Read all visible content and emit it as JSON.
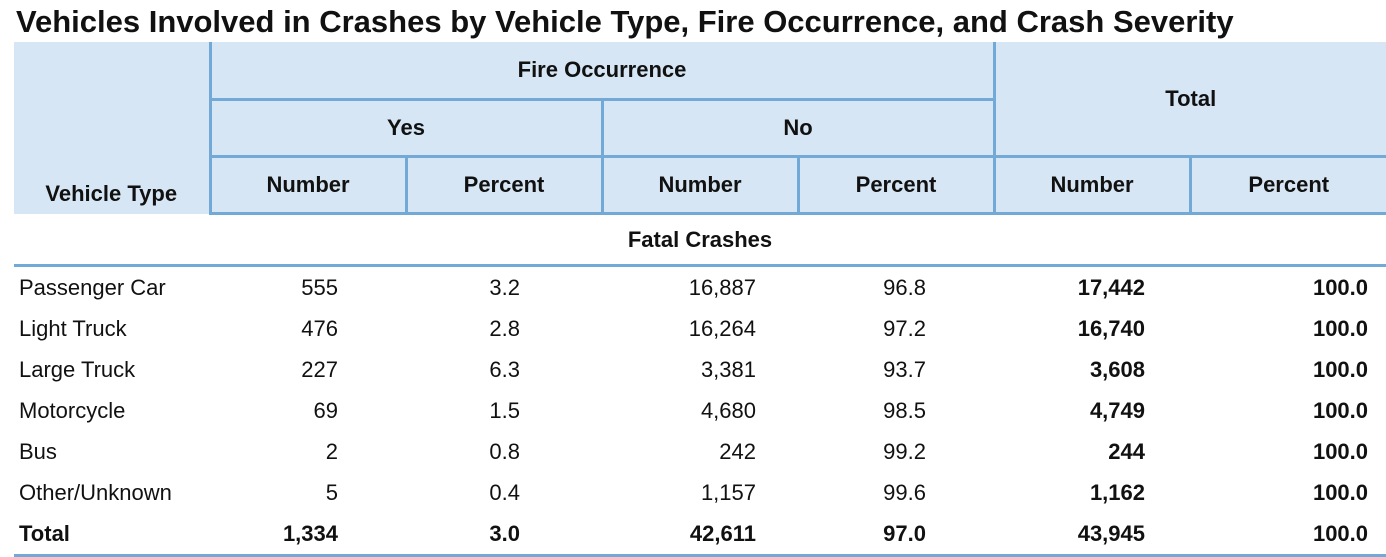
{
  "title": "Vehicles Involved in Crashes by Vehicle Type, Fire Occurrence, and Crash Severity",
  "header": {
    "vehicle_type": "Vehicle Type",
    "fire_occurrence": "Fire Occurrence",
    "yes": "Yes",
    "no": "No",
    "total": "Total",
    "number": "Number",
    "percent": "Percent"
  },
  "section": "Fatal Crashes",
  "rows": [
    {
      "type": "Passenger Car",
      "yes_number": "555",
      "yes_percent": "3.2",
      "no_number": "16,887",
      "no_percent": "96.8",
      "total_number": "17,442",
      "total_percent": "100.0"
    },
    {
      "type": "Light Truck",
      "yes_number": "476",
      "yes_percent": "2.8",
      "no_number": "16,264",
      "no_percent": "97.2",
      "total_number": "16,740",
      "total_percent": "100.0"
    },
    {
      "type": "Large Truck",
      "yes_number": "227",
      "yes_percent": "6.3",
      "no_number": "3,381",
      "no_percent": "93.7",
      "total_number": "3,608",
      "total_percent": "100.0"
    },
    {
      "type": "Motorcycle",
      "yes_number": "69",
      "yes_percent": "1.5",
      "no_number": "4,680",
      "no_percent": "98.5",
      "total_number": "4,749",
      "total_percent": "100.0"
    },
    {
      "type": "Bus",
      "yes_number": "2",
      "yes_percent": "0.8",
      "no_number": "242",
      "no_percent": "99.2",
      "total_number": "244",
      "total_percent": "100.0"
    },
    {
      "type": "Other/Unknown",
      "yes_number": "5",
      "yes_percent": "0.4",
      "no_number": "1,157",
      "no_percent": "99.6",
      "total_number": "1,162",
      "total_percent": "100.0"
    }
  ],
  "total_row": {
    "type": "Total",
    "yes_number": "1,334",
    "yes_percent": "3.0",
    "no_number": "42,611",
    "no_percent": "97.0",
    "total_number": "43,945",
    "total_percent": "100.0"
  }
}
